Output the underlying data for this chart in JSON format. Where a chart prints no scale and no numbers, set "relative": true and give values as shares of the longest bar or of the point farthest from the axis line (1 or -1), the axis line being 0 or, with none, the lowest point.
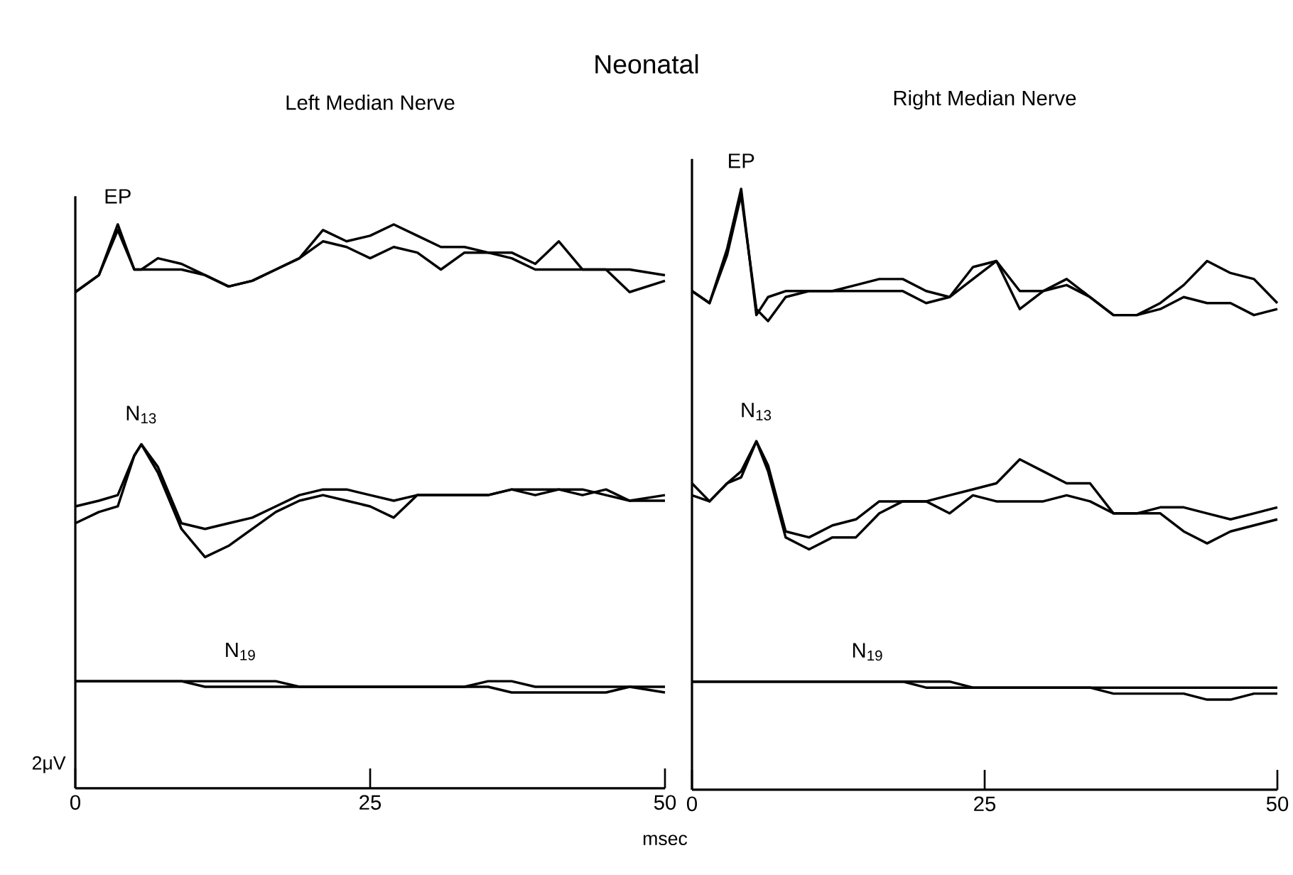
{
  "chart_data": [
    {
      "type": "line",
      "title": "Neonatal",
      "subtitle": "Left Median Nerve",
      "xlabel": "msec",
      "relative": true,
      "xlim": [
        0,
        50
      ],
      "xticks": [
        0,
        25,
        50
      ],
      "x": [
        0,
        2,
        3.6,
        5,
        5.6,
        7,
        9,
        11,
        13,
        15,
        17,
        19,
        21,
        23,
        25,
        27,
        29,
        31,
        33,
        35,
        37,
        39,
        41,
        43,
        45,
        47,
        50
      ],
      "series": [
        {
          "color": "#000000",
          "values": [
            0.88,
            0.91,
            1.0,
            0.92,
            0.92,
            0.92,
            0.92,
            0.91,
            0.89,
            0.9,
            0.92,
            0.94,
            0.99,
            0.97,
            0.98,
            1.0,
            0.98,
            0.96,
            0.96,
            0.95,
            0.95,
            0.93,
            0.97,
            0.92,
            0.92,
            0.92,
            0.91
          ]
        },
        {
          "color": "#000000",
          "values": [
            0.88,
            0.91,
            0.99,
            0.92,
            0.92,
            0.94,
            0.93,
            0.91,
            0.89,
            0.9,
            0.92,
            0.94,
            0.97,
            0.96,
            0.94,
            0.96,
            0.95,
            0.92,
            0.95,
            0.95,
            0.94,
            0.92,
            0.92,
            0.92,
            0.92,
            0.88,
            0.9
          ]
        },
        {
          "color": "#000000",
          "values": [
            0.5,
            0.51,
            0.52,
            0.59,
            0.61,
            0.57,
            0.47,
            0.46,
            0.47,
            0.48,
            0.5,
            0.52,
            0.53,
            0.53,
            0.52,
            0.51,
            0.52,
            0.52,
            0.52,
            0.52,
            0.53,
            0.53,
            0.53,
            0.53,
            0.52,
            0.51,
            0.52
          ]
        },
        {
          "color": "#000000",
          "values": [
            0.47,
            0.49,
            0.5,
            0.59,
            0.61,
            0.56,
            0.46,
            0.41,
            0.43,
            0.46,
            0.49,
            0.51,
            0.52,
            0.51,
            0.5,
            0.48,
            0.52,
            0.52,
            0.52,
            0.52,
            0.53,
            0.52,
            0.53,
            0.52,
            0.53,
            0.51,
            0.51
          ]
        },
        {
          "color": "#000000",
          "values": [
            0.19,
            0.19,
            0.19,
            0.19,
            0.19,
            0.19,
            0.19,
            0.19,
            0.19,
            0.19,
            0.19,
            0.18,
            0.18,
            0.18,
            0.18,
            0.18,
            0.18,
            0.18,
            0.18,
            0.19,
            0.19,
            0.18,
            0.18,
            0.18,
            0.18,
            0.18,
            0.18
          ]
        },
        {
          "color": "#000000",
          "values": [
            0.19,
            0.19,
            0.19,
            0.19,
            0.19,
            0.19,
            0.19,
            0.18,
            0.18,
            0.18,
            0.18,
            0.18,
            0.18,
            0.18,
            0.18,
            0.18,
            0.18,
            0.18,
            0.18,
            0.18,
            0.17,
            0.17,
            0.17,
            0.17,
            0.17,
            0.18,
            0.17
          ]
        }
      ],
      "annotations": [
        {
          "text": "EP",
          "x": 3.6,
          "y": 1.0
        },
        {
          "text": "N$_{13}$",
          "x": 5.6,
          "y": 0.61
        },
        {
          "text": "N$_{19}$",
          "x": 14,
          "y": 0.19
        },
        "2μV"
      ]
    },
    {
      "type": "line",
      "subtitle": "Right Median Nerve",
      "relative": true,
      "xlim": [
        0,
        50
      ],
      "xticks": [
        0,
        25,
        50
      ],
      "x": [
        0,
        1.5,
        3,
        4.2,
        5.5,
        6.5,
        8,
        10,
        12,
        14,
        16,
        18,
        20,
        22,
        24,
        26,
        28,
        30,
        32,
        34,
        36,
        38,
        40,
        42,
        44,
        46,
        48,
        50
      ],
      "series": [
        {
          "color": "#000000",
          "values": [
            0.83,
            0.81,
            0.9,
            1.0,
            0.79,
            0.82,
            0.83,
            0.83,
            0.83,
            0.84,
            0.85,
            0.85,
            0.83,
            0.82,
            0.85,
            0.88,
            0.83,
            0.83,
            0.84,
            0.82,
            0.79,
            0.79,
            0.81,
            0.84,
            0.88,
            0.86,
            0.85,
            0.81
          ]
        },
        {
          "color": "#000000",
          "values": [
            0.83,
            0.81,
            0.89,
            0.99,
            0.8,
            0.78,
            0.82,
            0.83,
            0.83,
            0.83,
            0.83,
            0.83,
            0.81,
            0.82,
            0.87,
            0.88,
            0.8,
            0.83,
            0.85,
            0.82,
            0.79,
            0.79,
            0.8,
            0.82,
            0.81,
            0.81,
            0.79,
            0.8
          ]
        },
        {
          "color": "#000000",
          "values": [
            0.51,
            0.48,
            0.51,
            0.53,
            0.58,
            0.54,
            0.43,
            0.42,
            0.44,
            0.45,
            0.48,
            0.48,
            0.48,
            0.49,
            0.5,
            0.51,
            0.55,
            0.53,
            0.51,
            0.51,
            0.46,
            0.46,
            0.47,
            0.47,
            0.46,
            0.45,
            0.46,
            0.47
          ]
        },
        {
          "color": "#000000",
          "values": [
            0.49,
            0.48,
            0.51,
            0.52,
            0.58,
            0.53,
            0.42,
            0.4,
            0.42,
            0.42,
            0.46,
            0.48,
            0.48,
            0.46,
            0.49,
            0.48,
            0.48,
            0.48,
            0.49,
            0.48,
            0.46,
            0.46,
            0.46,
            0.43,
            0.41,
            0.43,
            0.44,
            0.45
          ]
        },
        {
          "color": "#000000",
          "values": [
            0.18,
            0.18,
            0.18,
            0.18,
            0.18,
            0.18,
            0.18,
            0.18,
            0.18,
            0.18,
            0.18,
            0.18,
            0.18,
            0.18,
            0.17,
            0.17,
            0.17,
            0.17,
            0.17,
            0.17,
            0.17,
            0.17,
            0.17,
            0.17,
            0.17,
            0.17,
            0.17,
            0.17
          ]
        },
        {
          "color": "#000000",
          "values": [
            0.18,
            0.18,
            0.18,
            0.18,
            0.18,
            0.18,
            0.18,
            0.18,
            0.18,
            0.18,
            0.18,
            0.18,
            0.17,
            0.17,
            0.17,
            0.17,
            0.17,
            0.17,
            0.17,
            0.17,
            0.16,
            0.16,
            0.16,
            0.16,
            0.15,
            0.15,
            0.16,
            0.16
          ]
        }
      ],
      "annotations": [
        {
          "text": "EP",
          "x": 4.2,
          "y": 1.0
        },
        {
          "text": "N$_{13}$",
          "x": 5.5,
          "y": 0.58
        },
        {
          "text": "N$_{19}$",
          "x": 15,
          "y": 0.18
        }
      ]
    }
  ]
}
